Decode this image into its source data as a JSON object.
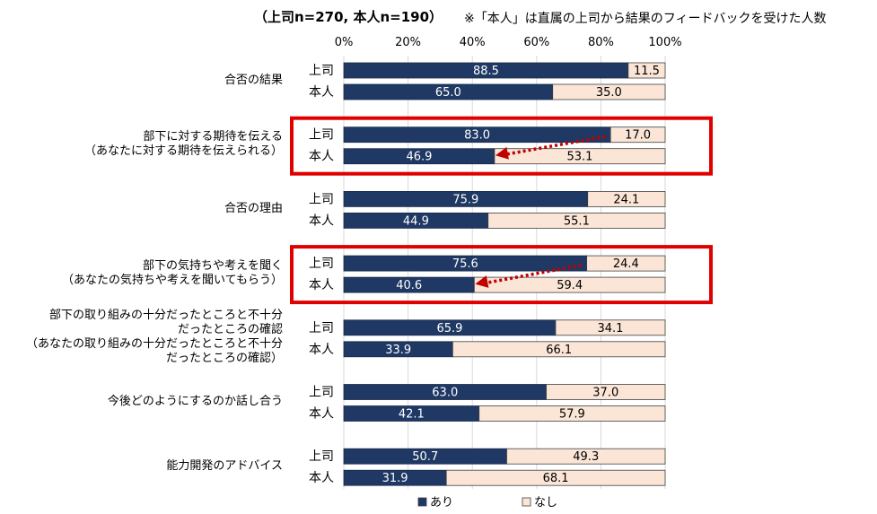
{
  "chart_data": {
    "type": "bar",
    "orientation": "horizontal",
    "stacked": true,
    "subtitle": "（上司n=270, 本人n=190）",
    "note": "※「本人」は直属の上司から結果のフィードバックを受けた人数",
    "x_ticks": [
      "0%",
      "20%",
      "40%",
      "60%",
      "80%",
      "100%"
    ],
    "xlim": [
      0,
      100
    ],
    "legend": [
      "あり",
      "なし"
    ],
    "legend_position": "bottom",
    "colors": {
      "ari": "#1f3864",
      "nashi": "#fbe5d6",
      "highlight": "#e00000",
      "arrow": "#c00000"
    },
    "categories": [
      {
        "lines": [
          "合否の結果"
        ],
        "rows": [
          {
            "label": "上司",
            "ari": 88.5,
            "nashi": 11.5
          },
          {
            "label": "本人",
            "ari": 65.0,
            "nashi": 35.0
          }
        ]
      },
      {
        "lines": [
          "部下に対する期待を伝える",
          "（あなたに対する期待を伝えられる）"
        ],
        "highlighted": true,
        "rows": [
          {
            "label": "上司",
            "ari": 83.0,
            "nashi": 17.0
          },
          {
            "label": "本人",
            "ari": 46.9,
            "nashi": 53.1
          }
        ]
      },
      {
        "lines": [
          "合否の理由"
        ],
        "rows": [
          {
            "label": "上司",
            "ari": 75.9,
            "nashi": 24.1
          },
          {
            "label": "本人",
            "ari": 44.9,
            "nashi": 55.1
          }
        ]
      },
      {
        "lines": [
          "部下の気持ちや考えを聞く",
          "（あなたの気持ちや考えを聞いてもらう）"
        ],
        "highlighted": true,
        "rows": [
          {
            "label": "上司",
            "ari": 75.6,
            "nashi": 24.4
          },
          {
            "label": "本人",
            "ari": 40.6,
            "nashi": 59.4
          }
        ]
      },
      {
        "lines": [
          "部下の取り組みの十分だったところと不十分",
          "だったところの確認",
          "（あなたの取り組みの十分だったところと不十分",
          "だったところの確認）"
        ],
        "rows": [
          {
            "label": "上司",
            "ari": 65.9,
            "nashi": 34.1
          },
          {
            "label": "本人",
            "ari": 33.9,
            "nashi": 66.1
          }
        ]
      },
      {
        "lines": [
          "今後どのようにするのか話し合う"
        ],
        "rows": [
          {
            "label": "上司",
            "ari": 63.0,
            "nashi": 37.0
          },
          {
            "label": "本人",
            "ari": 42.1,
            "nashi": 57.9
          }
        ]
      },
      {
        "lines": [
          "能力開発のアドバイス"
        ],
        "rows": [
          {
            "label": "上司",
            "ari": 50.7,
            "nashi": 49.3
          },
          {
            "label": "本人",
            "ari": 31.9,
            "nashi": 68.1
          }
        ]
      }
    ]
  }
}
